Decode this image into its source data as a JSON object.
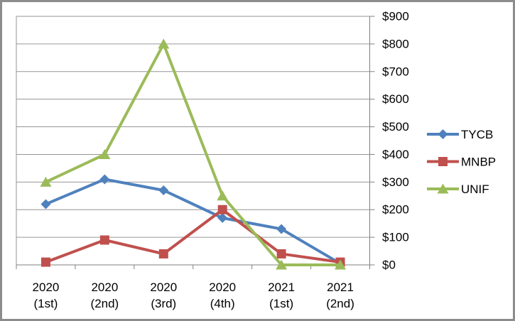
{
  "window": {
    "background": "#ffffff",
    "border_color": "#8c8c8c"
  },
  "chart_data": {
    "type": "line",
    "title": "",
    "xlabel": "",
    "ylabel": "",
    "categories": [
      "2020 (1st)",
      "2020 (2nd)",
      "2020 (3rd)",
      "2020 (4th)",
      "2021 (1st)",
      "2021 (2nd)"
    ],
    "category_labels": [
      [
        "2020",
        "(1st)"
      ],
      [
        "2020",
        "(2nd)"
      ],
      [
        "2020",
        "(3rd)"
      ],
      [
        "2020",
        "(4th)"
      ],
      [
        "2021",
        "(1st)"
      ],
      [
        "2021",
        "(2nd)"
      ]
    ],
    "series": [
      {
        "name": "TYCB",
        "color": "#4F81BD",
        "marker": "diamond",
        "values": [
          220,
          310,
          270,
          170,
          130,
          5
        ]
      },
      {
        "name": "MNBP",
        "color": "#C0504D",
        "marker": "square",
        "values": [
          10,
          90,
          40,
          200,
          40,
          10
        ]
      },
      {
        "name": "UNIF",
        "color": "#9BBB59",
        "marker": "triangle",
        "values": [
          300,
          400,
          800,
          250,
          0,
          0
        ]
      }
    ],
    "y_axis": {
      "side": "right",
      "min": 0,
      "max": 900,
      "step": 100,
      "tick_labels": [
        "$0",
        "$100",
        "$200",
        "$300",
        "$400",
        "$500",
        "$600",
        "$700",
        "$800",
        "$900"
      ]
    },
    "grid": true,
    "legend": {
      "position": "right",
      "entries": [
        "TYCB",
        "MNBP",
        "UNIF"
      ]
    },
    "colors": {
      "gridline": "#969696",
      "axis": "#808080",
      "text": "#000000"
    }
  }
}
